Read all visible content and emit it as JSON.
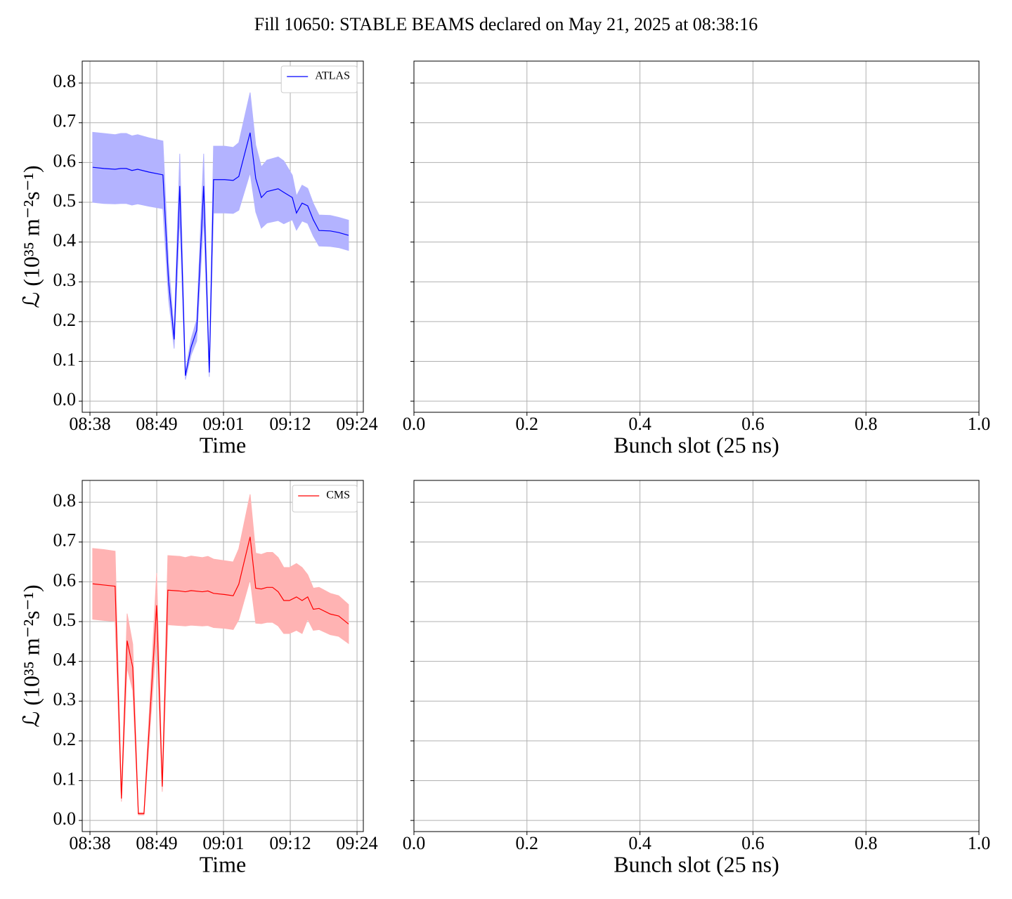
{
  "title": "Fill 10650: STABLE BEAMS declared on May 21, 2025 at 08:38:16",
  "chart_data": [
    {
      "type": "line",
      "xlabel": "Time",
      "ylabel": "ℒ (10³⁵ m⁻²s⁻¹)",
      "x": [
        "08:38:44",
        "08:40:40",
        "08:42:36",
        "08:43:34",
        "08:44:32",
        "08:45:30",
        "08:46:29",
        "08:48:25",
        "08:50:50",
        "08:51:48",
        "08:52:46",
        "08:53:44",
        "08:54:42",
        "08:55:41",
        "08:56:39",
        "08:57:51",
        "08:58:49",
        "08:59:33",
        "09:01:29",
        "09:02:56",
        "09:03:54",
        "09:05:51",
        "09:06:49",
        "09:07:47",
        "09:08:45",
        "09:10:41",
        "09:11:39",
        "09:13:07",
        "09:13:50",
        "09:14:48",
        "09:15:46",
        "09:16:44",
        "09:17:43",
        "09:19:39",
        "09:21:06",
        "09:22:48"
      ],
      "series": [
        {
          "name": "ATLAS",
          "color": "#0000ff",
          "band_color": "#b3b3ff",
          "values": [
            0.588,
            0.585,
            0.583,
            0.585,
            0.585,
            0.58,
            0.583,
            0.576,
            0.569,
            0.302,
            0.155,
            0.541,
            0.064,
            0.136,
            0.178,
            0.541,
            0.072,
            0.557,
            0.557,
            0.555,
            0.565,
            0.675,
            0.56,
            0.512,
            0.527,
            0.534,
            0.525,
            0.512,
            0.473,
            0.498,
            0.491,
            0.456,
            0.429,
            0.428,
            0.424,
            0.417
          ],
          "upper": [
            0.676,
            0.673,
            0.67,
            0.673,
            0.673,
            0.667,
            0.67,
            0.662,
            0.654,
            0.347,
            0.178,
            0.622,
            0.074,
            0.156,
            0.205,
            0.622,
            0.083,
            0.641,
            0.641,
            0.638,
            0.65,
            0.776,
            0.644,
            0.589,
            0.606,
            0.614,
            0.604,
            0.568,
            0.516,
            0.543,
            0.535,
            0.497,
            0.468,
            0.467,
            0.462,
            0.455
          ],
          "lower": [
            0.5,
            0.497,
            0.496,
            0.497,
            0.497,
            0.493,
            0.496,
            0.49,
            0.484,
            0.257,
            0.132,
            0.46,
            0.054,
            0.116,
            0.151,
            0.46,
            0.061,
            0.473,
            0.473,
            0.472,
            0.48,
            0.574,
            0.476,
            0.435,
            0.448,
            0.454,
            0.446,
            0.456,
            0.43,
            0.453,
            0.447,
            0.415,
            0.39,
            0.389,
            0.386,
            0.379
          ]
        }
      ],
      "xlim": [
        "08:36:56",
        "09:25:21"
      ],
      "xticks": [
        {
          "value": "08:38:16",
          "label": "08:38"
        },
        {
          "value": "08:49:46",
          "label": "08:49"
        },
        {
          "value": "09:01:16",
          "label": "09:01"
        },
        {
          "value": "09:12:46",
          "label": "09:12"
        },
        {
          "value": "09:24:16",
          "label": "09:24"
        }
      ],
      "ylim": [
        -0.028,
        0.855
      ],
      "yticks": [
        {
          "value": 0,
          "label": "0.0"
        },
        0.1,
        0.2,
        0.3,
        0.4,
        0.5,
        0.6,
        0.7,
        0.8
      ],
      "grid": true,
      "legend": "upper right"
    },
    {
      "type": "line",
      "xlabel": "Bunch slot (25 ns)",
      "series": [],
      "xlim": [
        0,
        1
      ],
      "xticks": [
        {
          "value": 0,
          "label": "0.0"
        },
        0.2,
        0.4,
        0.6,
        0.8,
        {
          "value": 1,
          "label": "1.0"
        }
      ],
      "grid": true
    },
    {
      "type": "line",
      "xlabel": "Time",
      "ylabel": "ℒ (10³⁵ m⁻²s⁻¹)",
      "x": [
        "08:38:44",
        "08:40:40",
        "08:42:36",
        "08:43:41",
        "08:44:40",
        "08:45:38",
        "08:46:36",
        "08:47:34",
        "08:49:45",
        "08:50:43",
        "08:51:41",
        "08:53:44",
        "08:54:42",
        "08:55:41",
        "08:57:37",
        "08:58:35",
        "08:59:33",
        "09:01:29",
        "09:02:56",
        "09:03:54",
        "09:05:51",
        "09:06:49",
        "09:07:47",
        "09:08:45",
        "09:09:43",
        "09:10:41",
        "09:11:39",
        "09:12:37",
        "09:13:50",
        "09:14:48",
        "09:15:46",
        "09:16:44",
        "09:17:43",
        "09:19:39",
        "09:21:06",
        "09:22:48"
      ],
      "series": [
        {
          "name": "CMS",
          "color": "#ff0000",
          "band_color": "#ffb3b3",
          "values": [
            0.595,
            0.592,
            0.589,
            0.055,
            0.452,
            0.385,
            0.017,
            0.017,
            0.541,
            0.085,
            0.579,
            0.577,
            0.575,
            0.578,
            0.575,
            0.577,
            0.571,
            0.568,
            0.565,
            0.594,
            0.713,
            0.584,
            0.582,
            0.586,
            0.586,
            0.575,
            0.553,
            0.553,
            0.562,
            0.553,
            0.562,
            0.531,
            0.533,
            0.519,
            0.514,
            0.494
          ],
          "upper": [
            0.684,
            0.681,
            0.677,
            0.063,
            0.52,
            0.443,
            0.02,
            0.02,
            0.622,
            0.098,
            0.666,
            0.664,
            0.661,
            0.665,
            0.661,
            0.664,
            0.657,
            0.653,
            0.65,
            0.683,
            0.82,
            0.672,
            0.669,
            0.674,
            0.674,
            0.661,
            0.636,
            0.636,
            0.646,
            0.636,
            0.618,
            0.584,
            0.586,
            0.571,
            0.565,
            0.543
          ],
          "lower": [
            0.506,
            0.503,
            0.501,
            0.047,
            0.384,
            0.327,
            0.014,
            0.014,
            0.46,
            0.072,
            0.492,
            0.49,
            0.489,
            0.491,
            0.489,
            0.49,
            0.485,
            0.483,
            0.48,
            0.505,
            0.606,
            0.496,
            0.495,
            0.498,
            0.498,
            0.489,
            0.47,
            0.47,
            0.478,
            0.47,
            0.506,
            0.478,
            0.48,
            0.467,
            0.463,
            0.445
          ]
        }
      ],
      "xlim": [
        "08:36:56",
        "09:25:21"
      ],
      "xticks": [
        {
          "value": "08:38:16",
          "label": "08:38"
        },
        {
          "value": "08:49:46",
          "label": "08:49"
        },
        {
          "value": "09:01:16",
          "label": "09:01"
        },
        {
          "value": "09:12:46",
          "label": "09:12"
        },
        {
          "value": "09:24:16",
          "label": "09:24"
        }
      ],
      "ylim": [
        -0.028,
        0.855
      ],
      "yticks": [
        {
          "value": 0,
          "label": "0.0"
        },
        0.1,
        0.2,
        0.3,
        0.4,
        0.5,
        0.6,
        0.7,
        0.8
      ],
      "grid": true,
      "legend": "upper right"
    },
    {
      "type": "line",
      "xlabel": "Bunch slot (25 ns)",
      "series": [],
      "xlim": [
        0,
        1
      ],
      "xticks": [
        {
          "value": 0,
          "label": "0.0"
        },
        0.2,
        0.4,
        0.6,
        0.8,
        {
          "value": 1,
          "label": "1.0"
        }
      ],
      "grid": true
    }
  ]
}
